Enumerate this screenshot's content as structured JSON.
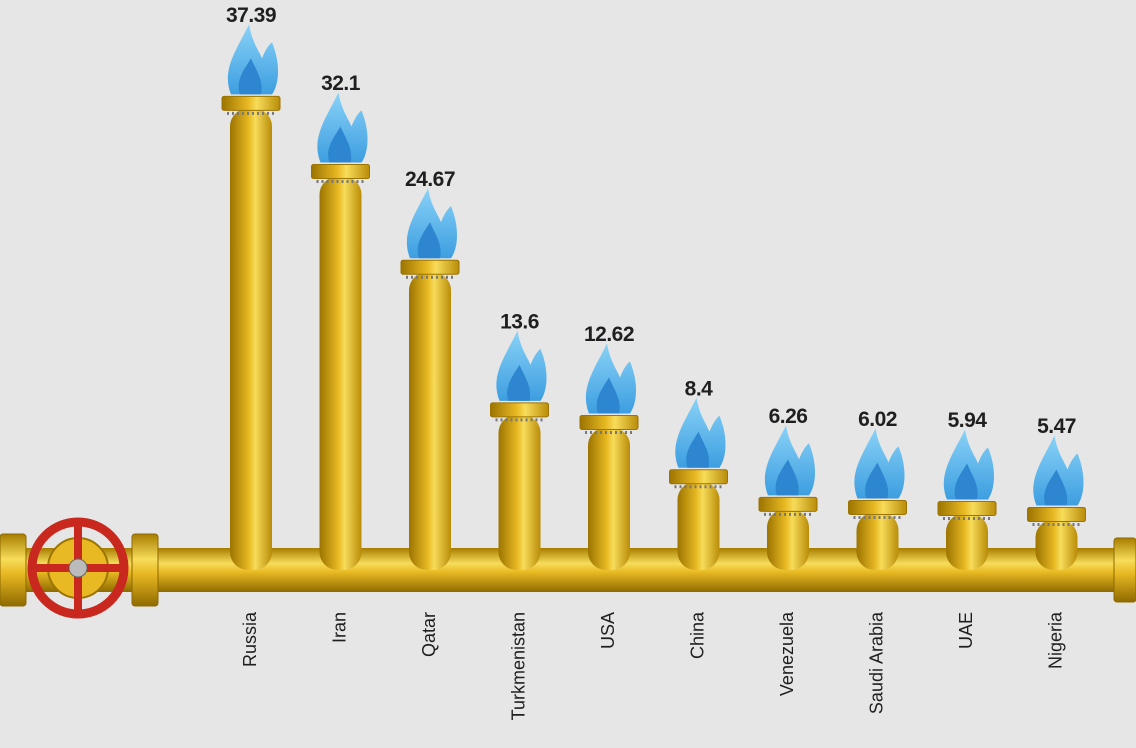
{
  "chart_data": {
    "type": "bar",
    "categories": [
      "Russia",
      "Iran",
      "Qatar",
      "Turkmenistan",
      "USA",
      "China",
      "Venezuela",
      "Saudi Arabia",
      "UAE",
      "Nigeria"
    ],
    "values": [
      37.39,
      32.1,
      24.67,
      13.6,
      12.62,
      8.4,
      6.26,
      6.02,
      5.94,
      5.47
    ],
    "color": "#e8b923"
  }
}
